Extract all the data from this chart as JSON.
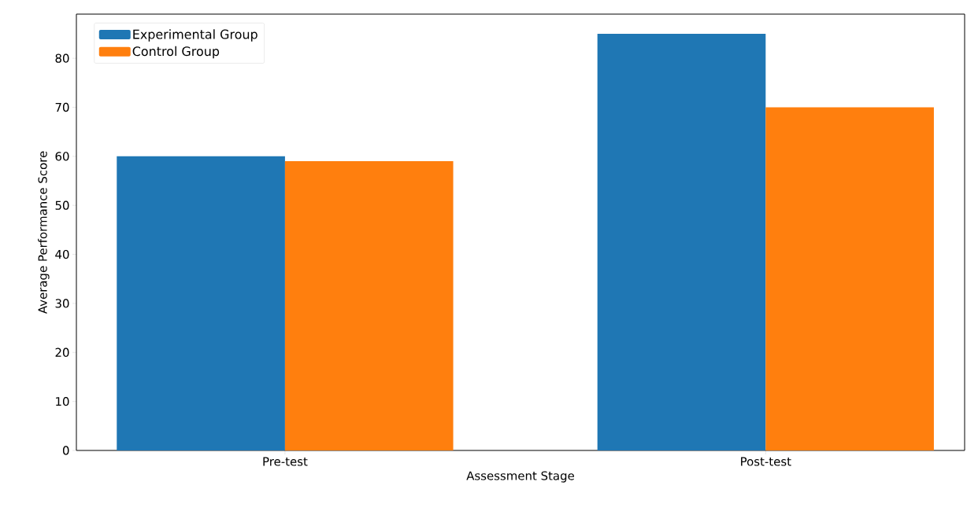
{
  "chart_data": {
    "type": "bar",
    "xlabel": "Assessment Stage",
    "ylabel": "Average Performance Score",
    "categories": [
      "Pre-test",
      "Post-test"
    ],
    "series": [
      {
        "name": "Experimental Group",
        "color": "#1f77b4",
        "values": [
          60,
          85
        ]
      },
      {
        "name": "Control Group",
        "color": "#ff7f0e",
        "values": [
          59,
          70
        ]
      }
    ],
    "ylim": [
      0,
      89
    ],
    "yticks": [
      0,
      10,
      20,
      30,
      40,
      50,
      60,
      70,
      80
    ],
    "legend": "top left"
  }
}
